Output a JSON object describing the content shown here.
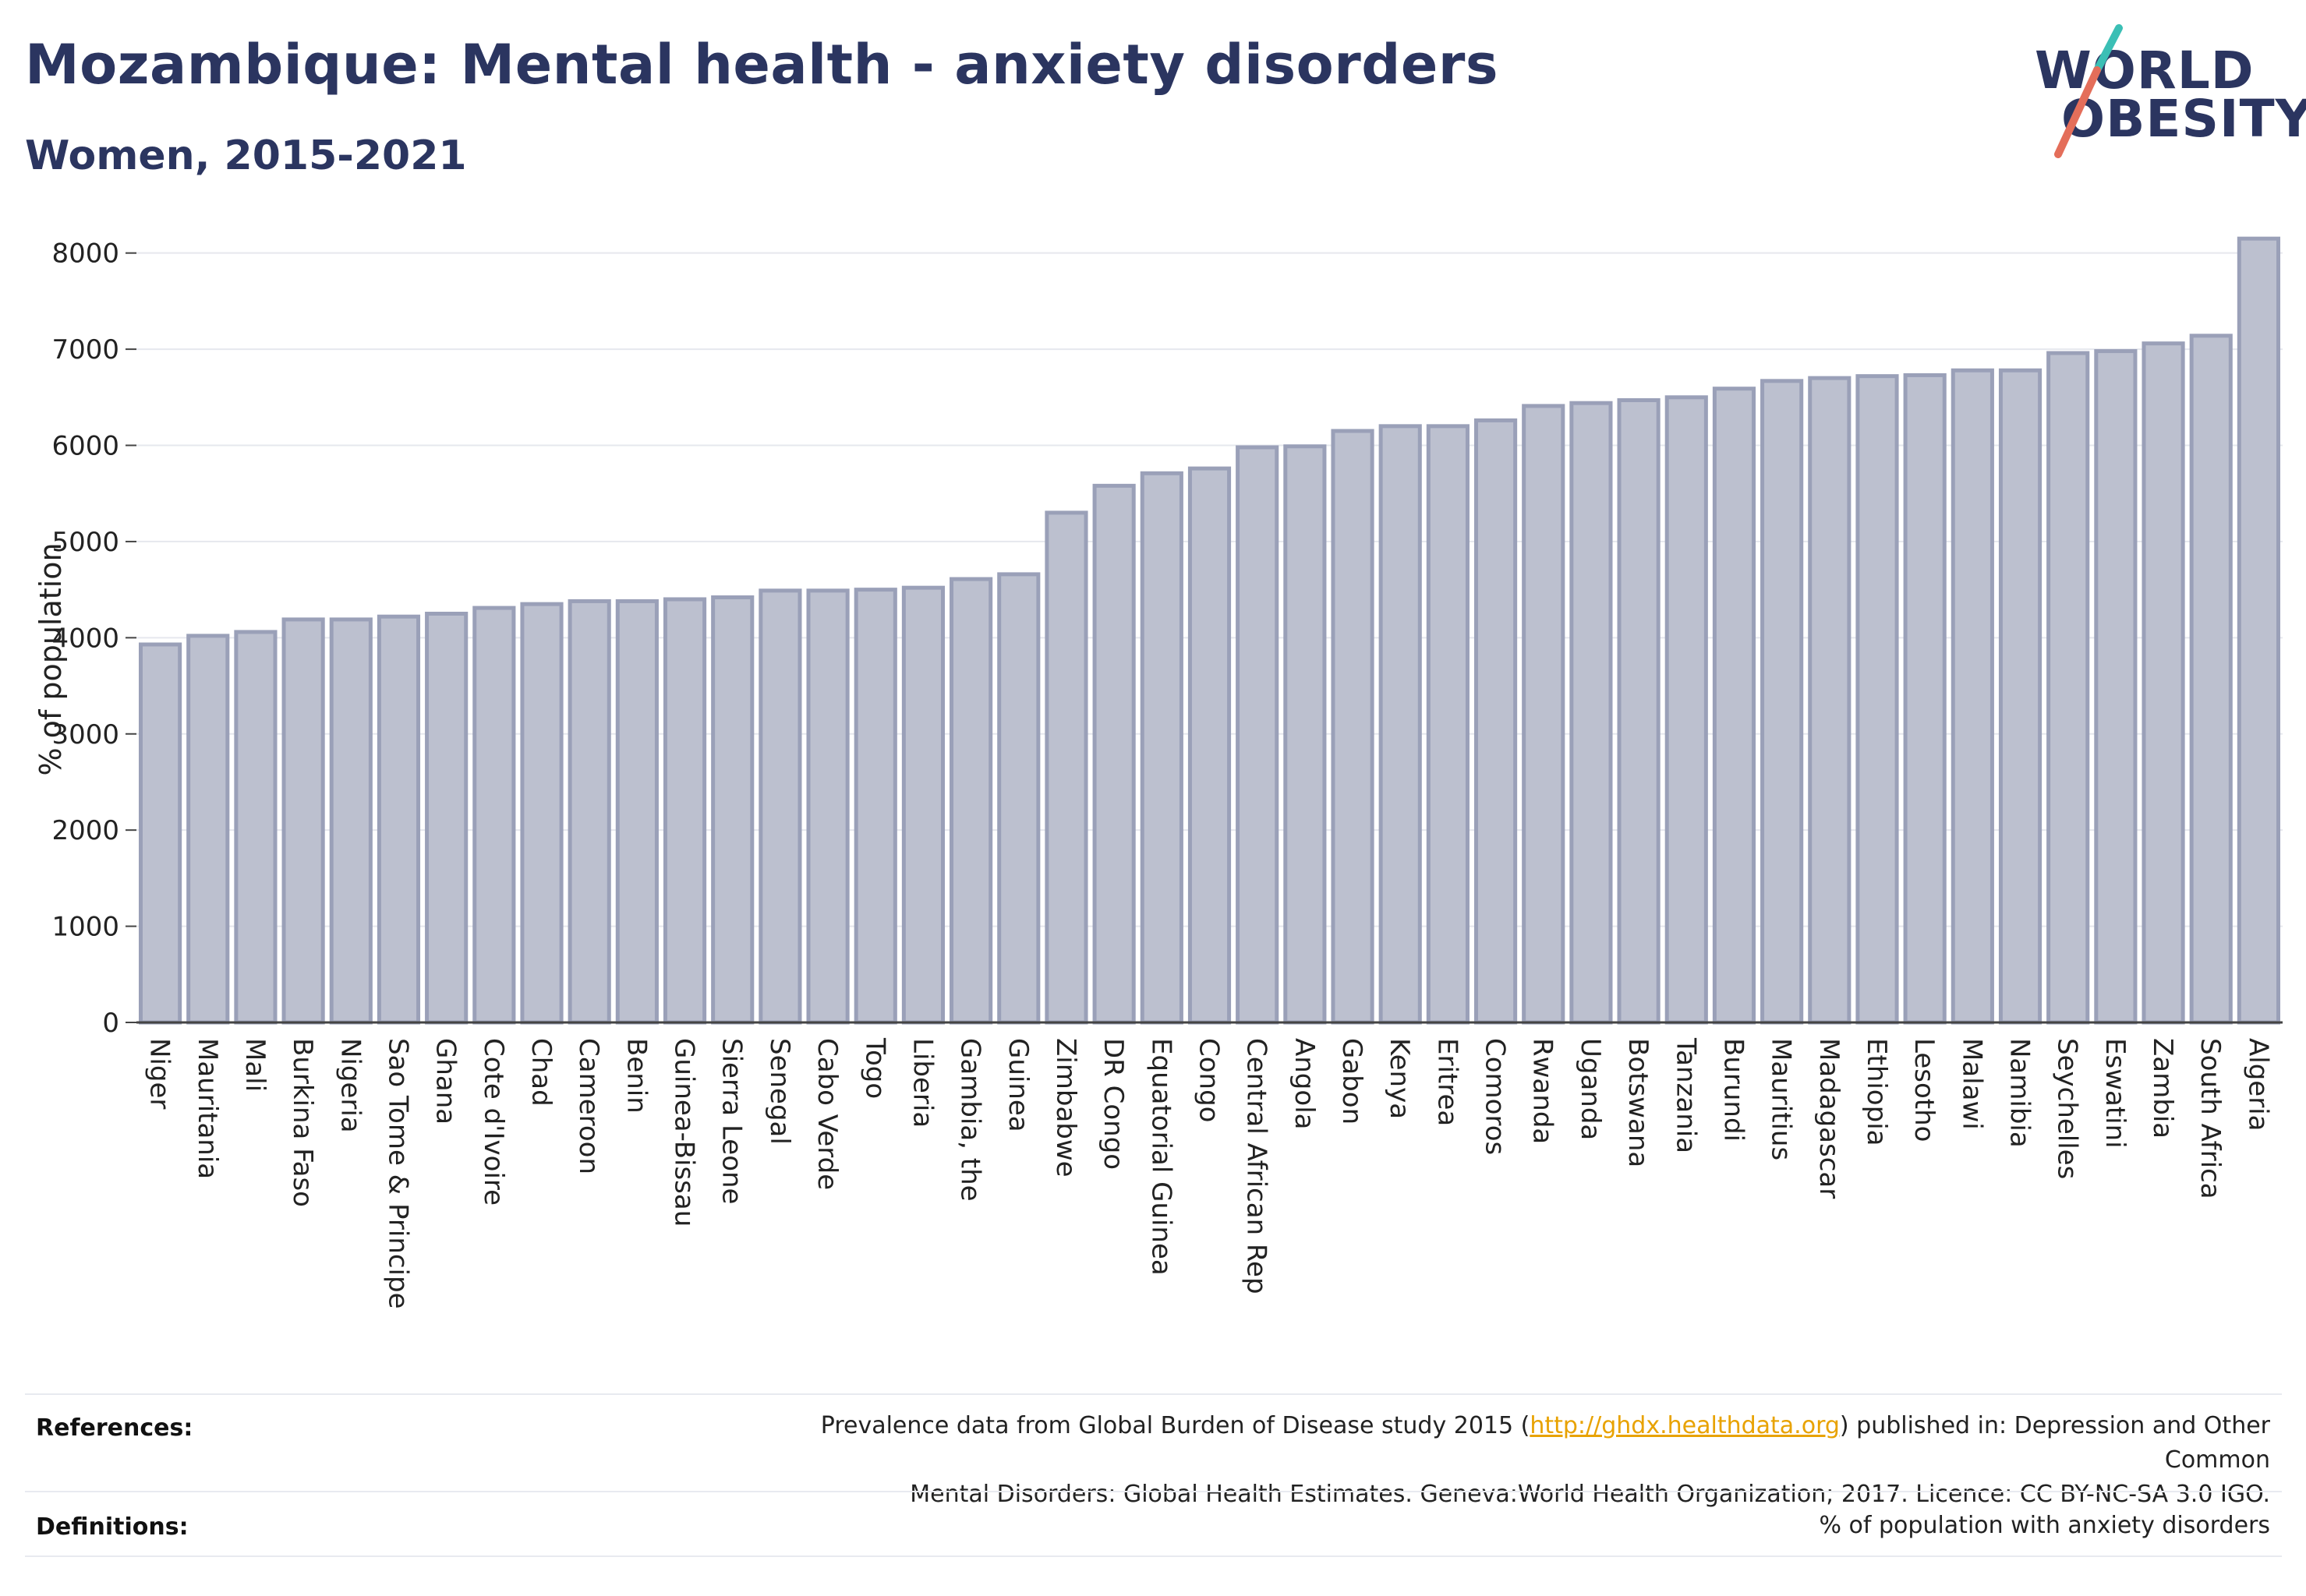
{
  "header": {
    "title": "Mozambique: Mental health - anxiety disorders",
    "subtitle": "Women, 2015-2021"
  },
  "logo": {
    "line1": "WORLD",
    "line2": "OBESITY",
    "slash_colors": [
      "#3bbfb5",
      "#e46e5a"
    ]
  },
  "chart_data": {
    "type": "bar",
    "title": "Mozambique: Mental health - anxiety disorders",
    "subtitle": "Women, 2015-2021",
    "ylabel": "% of population",
    "xlabel": "",
    "ylim": [
      0,
      8200
    ],
    "yticks": [
      0,
      1000,
      2000,
      3000,
      4000,
      5000,
      6000,
      7000,
      8000
    ],
    "grid": true,
    "bar_color": "#bcc0cf",
    "bar_edge_color": "#9aa0b8",
    "categories": [
      "Niger",
      "Mauritania",
      "Mali",
      "Burkina Faso",
      "Nigeria",
      "Sao Tome & Principe",
      "Ghana",
      "Cote d'Ivoire",
      "Chad",
      "Cameroon",
      "Benin",
      "Guinea-Bissau",
      "Sierra Leone",
      "Senegal",
      "Cabo Verde",
      "Togo",
      "Liberia",
      "Gambia, the",
      "Guinea",
      "Zimbabwe",
      "DR Congo",
      "Equatorial Guinea",
      "Congo",
      "Central African Rep",
      "Angola",
      "Gabon",
      "Kenya",
      "Eritrea",
      "Comoros",
      "Rwanda",
      "Uganda",
      "Botswana",
      "Tanzania",
      "Burundi",
      "Mauritius",
      "Madagascar",
      "Ethiopia",
      "Lesotho",
      "Malawi",
      "Namibia",
      "Seychelles",
      "Eswatini",
      "Zambia",
      "South Africa",
      "Algeria"
    ],
    "values": [
      3930,
      4020,
      4060,
      4190,
      4190,
      4220,
      4250,
      4310,
      4350,
      4380,
      4380,
      4400,
      4420,
      4490,
      4490,
      4500,
      4520,
      4610,
      4660,
      5300,
      5580,
      5710,
      5760,
      5980,
      5990,
      6150,
      6200,
      6200,
      6260,
      6410,
      6440,
      6470,
      6500,
      6590,
      6670,
      6700,
      6720,
      6730,
      6780,
      6780,
      6960,
      6980,
      7060,
      7140,
      8150
    ]
  },
  "footer": {
    "references_label": "References:",
    "references_pre": "Prevalence data from Global Burden of Disease study 2015 (",
    "references_link": "http://ghdx.healthdata.org",
    "references_mid": ") published in: Depression and Other Common",
    "references_line2": "Mental Disorders: Global Health Estimates. Geneva:World Health Organization; 2017. Licence: CC BY-NC-SA 3.0 IGO.",
    "definitions_label": "Definitions:",
    "definitions_text": "% of population with anxiety disorders"
  }
}
